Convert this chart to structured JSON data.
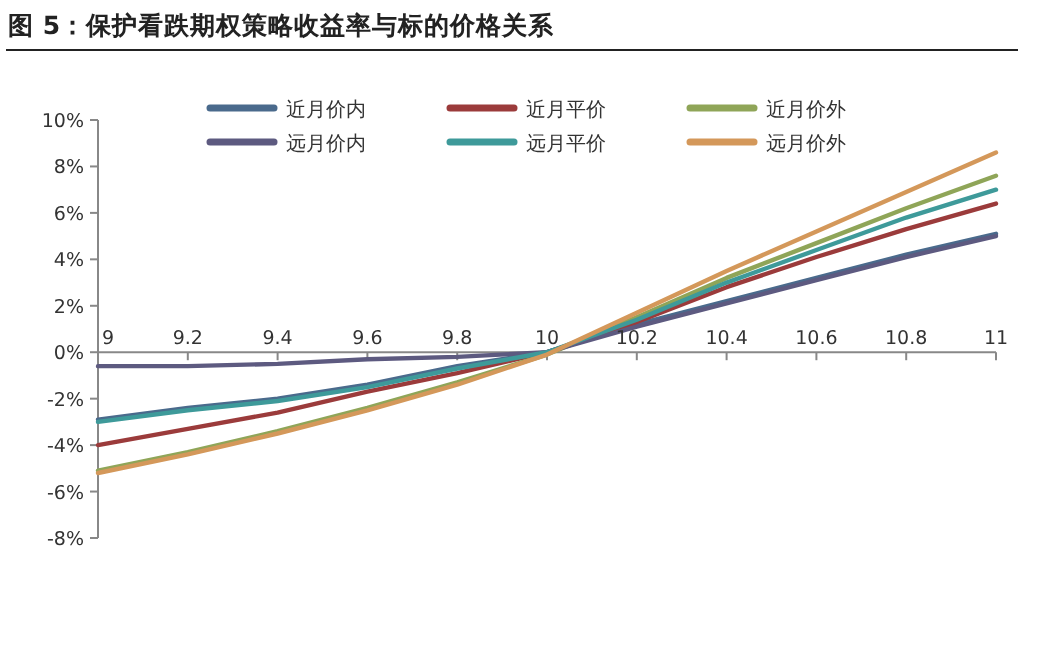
{
  "chart_data": {
    "type": "line",
    "title": "图 5：保护看跌期权策略收益率与标的价格关系",
    "x": [
      9,
      9.2,
      9.4,
      9.6,
      9.8,
      10,
      10.2,
      10.4,
      10.6,
      10.8,
      11
    ],
    "series": [
      {
        "name": "近月价内",
        "color": "#4a6a8c",
        "values": [
          -2.9,
          -2.4,
          -2.0,
          -1.4,
          -0.6,
          0,
          1.2,
          2.2,
          3.2,
          4.2,
          5.1
        ]
      },
      {
        "name": "近月平价",
        "color": "#9b3b3b",
        "values": [
          -4.0,
          -3.3,
          -2.6,
          -1.7,
          -0.9,
          0,
          1.3,
          2.8,
          4.1,
          5.3,
          6.4
        ]
      },
      {
        "name": "近月价外",
        "color": "#8fa558",
        "values": [
          -5.1,
          -4.3,
          -3.4,
          -2.4,
          -1.3,
          -0.1,
          1.5,
          3.2,
          4.7,
          6.2,
          7.6
        ]
      },
      {
        "name": "远月价内",
        "color": "#5d5a80",
        "values": [
          -0.6,
          -0.6,
          -0.5,
          -0.3,
          -0.2,
          0,
          1.1,
          2.1,
          3.1,
          4.1,
          5.0
        ]
      },
      {
        "name": "远月平价",
        "color": "#3e9a9a",
        "values": [
          -3.0,
          -2.5,
          -2.1,
          -1.5,
          -0.7,
          0,
          1.4,
          3.0,
          4.4,
          5.8,
          7.0
        ]
      },
      {
        "name": "远月价外",
        "color": "#d4985a",
        "values": [
          -5.2,
          -4.4,
          -3.5,
          -2.5,
          -1.4,
          -0.1,
          1.7,
          3.5,
          5.2,
          6.9,
          8.6
        ]
      }
    ],
    "xlim": [
      9,
      11
    ],
    "xticks": [
      9,
      9.2,
      9.4,
      9.6,
      9.8,
      10,
      10.2,
      10.4,
      10.6,
      10.8,
      11
    ],
    "ylim": [
      -8,
      10
    ],
    "yticks": [
      {
        "value": -8,
        "label": "-8%"
      },
      {
        "value": -6,
        "label": "-6%"
      },
      {
        "value": -4,
        "label": "-4%"
      },
      {
        "value": -2,
        "label": "-2%"
      },
      {
        "value": 0,
        "label": "0%"
      },
      {
        "value": 2,
        "label": "2%"
      },
      {
        "value": 4,
        "label": "4%"
      },
      {
        "value": 6,
        "label": "6%"
      },
      {
        "value": 8,
        "label": "8%"
      },
      {
        "value": 10,
        "label": "10%"
      }
    ],
    "grid": false,
    "legend": "top",
    "marker": "none",
    "line_style": "solid"
  }
}
